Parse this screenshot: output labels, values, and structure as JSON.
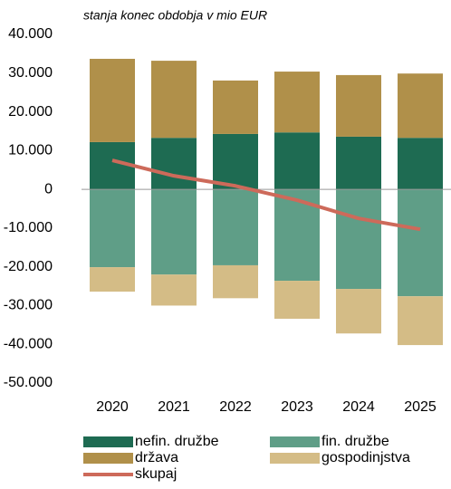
{
  "chart_data": {
    "type": "bar",
    "stacked": true,
    "subtitle": "stanja konec obdobja v mio EUR",
    "categories": [
      "2020",
      "2021",
      "2022",
      "2023",
      "2024",
      "2025"
    ],
    "series": [
      {
        "name": "nefin. družbe",
        "color": "#1e6b52",
        "values": [
          12200,
          13300,
          14300,
          14700,
          13600,
          13300
        ]
      },
      {
        "name": "fin. družbe",
        "color": "#5f9e87",
        "values": [
          -20100,
          -22000,
          -19600,
          -23600,
          -25700,
          -27600
        ]
      },
      {
        "name": "država",
        "color": "#b0904a",
        "values": [
          21500,
          19900,
          13800,
          15700,
          15900,
          16600
        ]
      },
      {
        "name": "gospodinjstva",
        "color": "#d4bc86",
        "values": [
          -6300,
          -8000,
          -8500,
          -9800,
          -11500,
          -12600
        ]
      },
      {
        "name": "skupaj",
        "type": "line",
        "color": "#cd6a5a",
        "values": [
          7500,
          3500,
          900,
          -2800,
          -7500,
          -10300
        ]
      }
    ],
    "ylim": [
      -50000,
      40000
    ],
    "yticks": [
      {
        "value": 40000,
        "label": "40.000"
      },
      {
        "value": 30000,
        "label": "30.000"
      },
      {
        "value": 20000,
        "label": "20.000"
      },
      {
        "value": 10000,
        "label": "10.000"
      },
      0,
      {
        "value": -10000,
        "label": "-10.000"
      },
      {
        "value": -20000,
        "label": "-20.000"
      },
      {
        "value": -30000,
        "label": "-30.000"
      },
      {
        "value": -40000,
        "label": "-40.000"
      },
      {
        "value": -50000,
        "label": "-50.000"
      }
    ]
  }
}
